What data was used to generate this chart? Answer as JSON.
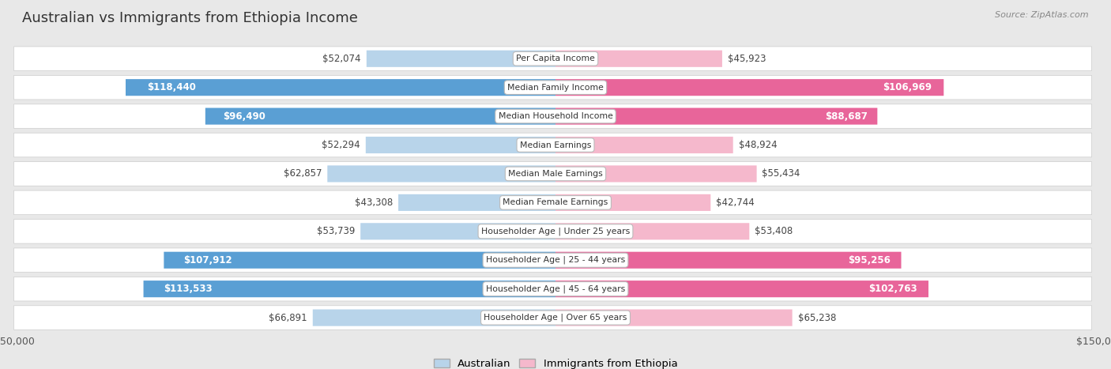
{
  "title": "Australian vs Immigrants from Ethiopia Income",
  "source": "Source: ZipAtlas.com",
  "categories": [
    "Per Capita Income",
    "Median Family Income",
    "Median Household Income",
    "Median Earnings",
    "Median Male Earnings",
    "Median Female Earnings",
    "Householder Age | Under 25 years",
    "Householder Age | 25 - 44 years",
    "Householder Age | 45 - 64 years",
    "Householder Age | Over 65 years"
  ],
  "australian_values": [
    52074,
    118440,
    96490,
    52294,
    62857,
    43308,
    53739,
    107912,
    113533,
    66891
  ],
  "ethiopia_values": [
    45923,
    106969,
    88687,
    48924,
    55434,
    42744,
    53408,
    95256,
    102763,
    65238
  ],
  "australian_labels": [
    "$52,074",
    "$118,440",
    "$96,490",
    "$52,294",
    "$62,857",
    "$43,308",
    "$53,739",
    "$107,912",
    "$113,533",
    "$66,891"
  ],
  "ethiopia_labels": [
    "$45,923",
    "$106,969",
    "$88,687",
    "$48,924",
    "$55,434",
    "$42,744",
    "$53,408",
    "$95,256",
    "$102,763",
    "$65,238"
  ],
  "max_value": 150000,
  "aus_color_light": "#b8d4ea",
  "aus_color_dark": "#5a9fd4",
  "eth_color_light": "#f5b8cc",
  "eth_color_dark": "#e8659a",
  "aus_label_inside": [
    false,
    true,
    true,
    false,
    false,
    false,
    false,
    true,
    true,
    false
  ],
  "eth_label_inside": [
    false,
    true,
    true,
    false,
    false,
    false,
    false,
    true,
    true,
    false
  ],
  "background_color": "#e8e8e8",
  "row_color": "#ffffff",
  "threshold": 80000
}
